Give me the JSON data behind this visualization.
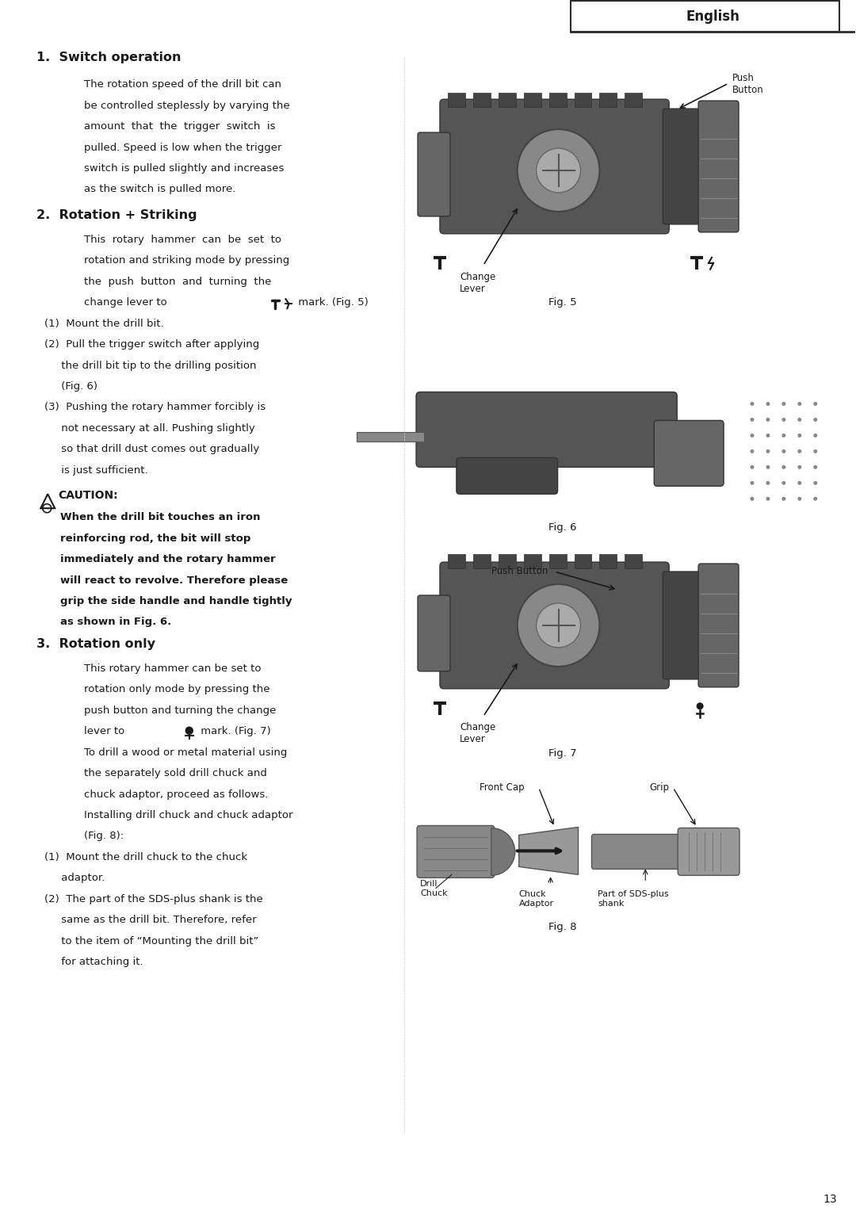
{
  "page_width": 10.8,
  "page_height": 15.29,
  "background_color": "#ffffff",
  "border_color": "#2c2c2c",
  "text_color": "#1a1a1a",
  "header_text": "English",
  "page_number": "13",
  "title1": "1.  Switch operation",
  "body1": "The rotation speed of the drill bit can\nbe controlled steplessly by varying the\namount  that  the  trigger  switch  is\npulled. Speed is low when the trigger\nswitch is pulled slightly and increases\nas the switch is pulled more.",
  "title2": "2.  Rotation + Striking",
  "body2": "This  rotary  hammer  can  be  set  to\nrotation and striking mode by pressing\nthe  push  button  and  turning  the\nchange lever to",
  "body2b": "mark. (Fig. 5)",
  "item1": "(1)  Mount the drill bit.",
  "item2": "(2)  Pull the trigger switch after applying\n     the drill bit tip to the drilling position\n     (Fig. 6)",
  "item3": "(3)  Pushing the rotary hammer forcibly is\n     not necessary at all. Pushing slightly\n     so that drill dust comes out gradually\n     is just sufficient.",
  "caution_title": "CAUTION:",
  "caution_body": "When the drill bit touches an iron\nreinforcing rod, the bit will stop\nimmediately and the rotary hammer\nwill react to revolve. Therefore please\ngrip the side handle and handle tightly\nas shown in Fig. 6.",
  "title3": "3.  Rotation only",
  "body3a": "This rotary hammer can be set to\nrotation only mode by pressing the\npush button and turning the change\nlever to",
  "body3b": "mark. (Fig. 7)",
  "body3c": "To drill a wood or metal material using\nthe separately sold drill chuck and\nchuck adaptor, proceed as follows.\nInstalling drill chuck and chuck adaptor\n(Fig. 8):",
  "item4": "(1)  Mount the drill chuck to the chuck\n     adaptor.",
  "item5": "(2)  The part of the SDS-plus shank is the\n     same as the drill bit. Therefore, refer\n     to the item of “Mounting the drill bit”\n     for attaching it.",
  "fig5_label": "Fig. 5",
  "fig6_label": "Fig. 6",
  "fig7_label": "Fig. 7",
  "fig8_label": "Fig. 8",
  "push_button_label": "Push\nButton",
  "change_lever_label": "Change\nLever",
  "push_button_label2": "Push Button",
  "change_lever_label2": "Change\nLever",
  "front_cap_label": "Front Cap",
  "grip_label": "Grip",
  "drill_chuck_label": "Drill\nChuck",
  "chuck_adaptor_label": "Chuck\nAdaptor",
  "sds_label": "Part of SDS-plus\nshank"
}
